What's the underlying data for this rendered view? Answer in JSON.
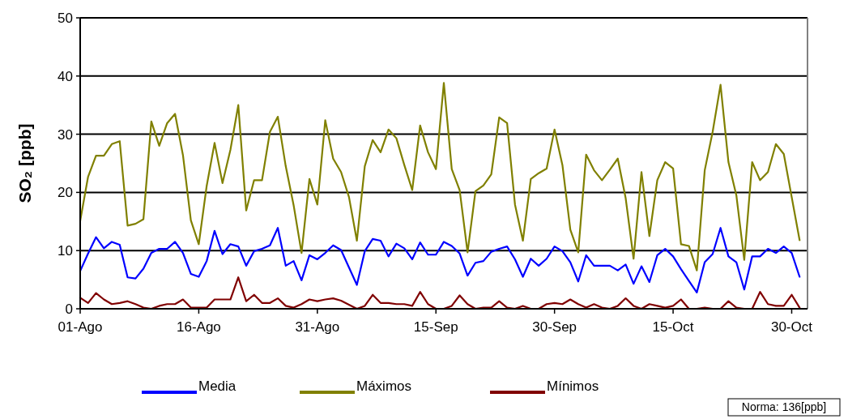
{
  "chart_data": {
    "type": "line",
    "ylabel": "SO₂ [ppb]",
    "ylim": [
      0,
      50
    ],
    "yticks": [
      0,
      10,
      20,
      30,
      40,
      50
    ],
    "xlim": [
      "--08-01",
      "--11-01"
    ],
    "xticks": [
      {
        "value": "--08-01",
        "label": "01-Ago"
      },
      {
        "value": "--08-16",
        "label": "16-Ago"
      },
      {
        "value": "--08-31",
        "label": "31-Ago"
      },
      {
        "value": "--09-15",
        "label": "15-Sep"
      },
      {
        "value": "--09-30",
        "label": "30-Sep"
      },
      {
        "value": "--10-15",
        "label": "15-Oct"
      },
      {
        "value": "--10-30",
        "label": "30-Oct"
      }
    ],
    "x": [
      "--08-01",
      "--08-02",
      "--08-03",
      "--08-04",
      "--08-05",
      "--08-06",
      "--08-07",
      "--08-08",
      "--08-09",
      "--08-10",
      "--08-11",
      "--08-12",
      "--08-13",
      "--08-14",
      "--08-15",
      "--08-16",
      "--08-17",
      "--08-18",
      "--08-19",
      "--08-20",
      "--08-21",
      "--08-22",
      "--08-23",
      "--08-24",
      "--08-25",
      "--08-26",
      "--08-27",
      "--08-28",
      "--08-29",
      "--08-30",
      "--08-31",
      "--09-01",
      "--09-02",
      "--09-03",
      "--09-04",
      "--09-05",
      "--09-06",
      "--09-07",
      "--09-08",
      "--09-09",
      "--09-10",
      "--09-11",
      "--09-12",
      "--09-13",
      "--09-14",
      "--09-15",
      "--09-16",
      "--09-17",
      "--09-18",
      "--09-19",
      "--09-20",
      "--09-21",
      "--09-22",
      "--09-23",
      "--09-24",
      "--09-25",
      "--09-26",
      "--09-27",
      "--09-28",
      "--09-29",
      "--09-30",
      "--10-01",
      "--10-02",
      "--10-03",
      "--10-04",
      "--10-05",
      "--10-06",
      "--10-07",
      "--10-08",
      "--10-09",
      "--10-10",
      "--10-11",
      "--10-12",
      "--10-13",
      "--10-14",
      "--10-15",
      "--10-16",
      "--10-17",
      "--10-18",
      "--10-19",
      "--10-20",
      "--10-21",
      "--10-22",
      "--10-23",
      "--10-24",
      "--10-25",
      "--10-26",
      "--10-27",
      "--10-28",
      "--10-29",
      "--10-30",
      "--10-31"
    ],
    "series": [
      {
        "name": "Media",
        "color": "#0000ff",
        "values": [
          6.5,
          9.5,
          12.3,
          10.4,
          11.5,
          11.0,
          5.4,
          5.2,
          6.9,
          9.6,
          10.3,
          10.3,
          11.5,
          9.6,
          6.0,
          5.5,
          8.2,
          13.4,
          9.4,
          11.1,
          10.7,
          7.4,
          9.9,
          10.3,
          10.9,
          13.9,
          7.4,
          8.2,
          4.9,
          9.2,
          8.5,
          9.6,
          10.9,
          10.1,
          7.1,
          4.1,
          9.9,
          12.0,
          11.7,
          9.0,
          11.2,
          10.4,
          8.5,
          11.4,
          9.3,
          9.3,
          11.5,
          10.8,
          9.5,
          5.7,
          7.9,
          8.2,
          9.8,
          10.3,
          10.7,
          8.5,
          5.5,
          8.6,
          7.4,
          8.6,
          10.7,
          9.9,
          8.0,
          4.7,
          9.2,
          7.4,
          7.4,
          7.4,
          6.6,
          7.6,
          4.3,
          7.3,
          4.6,
          9.2,
          10.3,
          9.0,
          6.8,
          4.8,
          2.8,
          8.0,
          9.4,
          13.9,
          9.0,
          8.0,
          3.3,
          9.0,
          9.0,
          10.3,
          9.6,
          10.7,
          9.6,
          5.5
        ]
      },
      {
        "name": "Máximos",
        "color": "#808000",
        "values": [
          15.1,
          22.7,
          26.3,
          26.3,
          28.3,
          28.8,
          14.3,
          14.6,
          15.4,
          32.2,
          28.0,
          31.9,
          33.5,
          26.4,
          15.2,
          11.1,
          21.1,
          28.5,
          21.6,
          27.3,
          35.0,
          16.9,
          22.1,
          22.1,
          30.4,
          33.0,
          24.5,
          17.8,
          9.6,
          22.3,
          17.9,
          32.4,
          25.8,
          23.5,
          19.2,
          11.7,
          24.5,
          29.0,
          26.9,
          30.8,
          29.3,
          24.7,
          20.4,
          31.5,
          26.9,
          24.0,
          38.8,
          24.0,
          20.4,
          9.7,
          20.2,
          21.2,
          23.1,
          32.9,
          31.9,
          17.9,
          11.7,
          22.3,
          23.3,
          24.1,
          30.8,
          24.7,
          13.6,
          9.7,
          26.5,
          23.8,
          22.1,
          23.9,
          25.8,
          19.0,
          8.6,
          23.5,
          12.5,
          22.1,
          25.2,
          24.1,
          11.1,
          10.8,
          6.6,
          23.8,
          30.4,
          38.5,
          25.2,
          19.5,
          8.4,
          25.2,
          22.1,
          23.5,
          28.3,
          26.6,
          19.2,
          11.8
        ]
      },
      {
        "name": "Mínimos",
        "color": "#800000",
        "values": [
          1.9,
          1.0,
          2.7,
          1.6,
          0.8,
          1.0,
          1.3,
          0.8,
          0.2,
          0,
          0.5,
          0.8,
          0.8,
          1.6,
          0.2,
          0.2,
          0.2,
          1.6,
          1.6,
          1.6,
          5.4,
          1.3,
          2.4,
          1.0,
          1.0,
          1.8,
          0.5,
          0.2,
          0.8,
          1.6,
          1.3,
          1.6,
          1.8,
          1.4,
          0.7,
          0,
          0.5,
          2.4,
          1.0,
          1.0,
          0.8,
          0.8,
          0.5,
          2.9,
          0.8,
          0,
          0,
          0.5,
          2.3,
          0.8,
          0,
          0.2,
          0.2,
          1.3,
          0.2,
          0,
          0.5,
          0,
          0,
          0.8,
          1.0,
          0.8,
          1.6,
          0.8,
          0.2,
          0.8,
          0.2,
          0,
          0.5,
          1.8,
          0.5,
          0,
          0.8,
          0.5,
          0.2,
          0.5,
          1.6,
          0,
          0,
          0.2,
          0,
          0,
          1.3,
          0.2,
          0,
          0,
          2.9,
          0.8,
          0.5,
          0.5,
          2.4,
          0.2
        ]
      }
    ],
    "grid": "y",
    "legend": "bottom",
    "marker": "none",
    "line_style": "solid",
    "annotations": [
      "Norma: 136[ppb]"
    ]
  }
}
